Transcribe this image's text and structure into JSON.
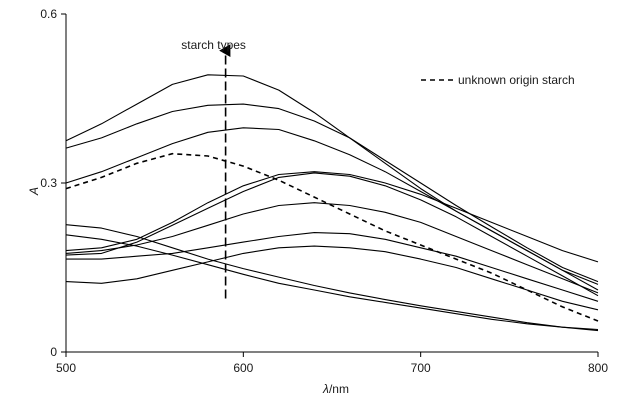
{
  "chart_data": {
    "type": "line",
    "xlabel_symbol": "λ",
    "xlabel_unit": "/nm",
    "ylabel": "A",
    "xlim": [
      500,
      800
    ],
    "ylim": [
      0,
      0.6
    ],
    "x_ticks": [
      "500",
      "600",
      "700",
      "800"
    ],
    "y_ticks": [
      "0",
      "0.3",
      "0.6"
    ],
    "grid": false,
    "annotation": "starch types",
    "legend": {
      "label": "unknown origin starch",
      "style": "dashed",
      "placement": "top-right"
    },
    "x": [
      500,
      520,
      540,
      560,
      580,
      600,
      620,
      640,
      660,
      680,
      700,
      720,
      740,
      760,
      780,
      800
    ],
    "series": [
      {
        "style": "solid",
        "values": [
          0.375,
          0.405,
          0.44,
          0.475,
          0.492,
          0.49,
          0.465,
          0.425,
          0.38,
          0.335,
          0.29,
          0.25,
          0.215,
          0.18,
          0.145,
          0.12
        ]
      },
      {
        "style": "solid",
        "values": [
          0.362,
          0.38,
          0.405,
          0.427,
          0.438,
          0.44,
          0.432,
          0.41,
          0.38,
          0.34,
          0.3,
          0.26,
          0.222,
          0.185,
          0.15,
          0.125
        ]
      },
      {
        "style": "solid",
        "values": [
          0.3,
          0.32,
          0.345,
          0.37,
          0.39,
          0.398,
          0.395,
          0.375,
          0.35,
          0.32,
          0.285,
          0.25,
          0.215,
          0.18,
          0.145,
          0.11
        ]
      },
      {
        "style": "solid",
        "values": [
          0.18,
          0.185,
          0.2,
          0.23,
          0.265,
          0.295,
          0.315,
          0.32,
          0.315,
          0.3,
          0.28,
          0.255,
          0.23,
          0.205,
          0.18,
          0.16
        ]
      },
      {
        "style": "solid",
        "values": [
          0.172,
          0.175,
          0.195,
          0.225,
          0.255,
          0.285,
          0.31,
          0.318,
          0.312,
          0.295,
          0.27,
          0.24,
          0.205,
          0.17,
          0.135,
          0.1
        ]
      },
      {
        "style": "solid",
        "values": [
          0.175,
          0.18,
          0.19,
          0.205,
          0.225,
          0.245,
          0.26,
          0.265,
          0.26,
          0.248,
          0.23,
          0.205,
          0.18,
          0.155,
          0.13,
          0.105
        ]
      },
      {
        "style": "solid",
        "values": [
          0.165,
          0.165,
          0.17,
          0.175,
          0.185,
          0.195,
          0.205,
          0.212,
          0.21,
          0.2,
          0.185,
          0.17,
          0.15,
          0.13,
          0.11,
          0.09
        ]
      },
      {
        "style": "solid",
        "values": [
          0.125,
          0.122,
          0.13,
          0.145,
          0.16,
          0.175,
          0.185,
          0.188,
          0.185,
          0.178,
          0.165,
          0.15,
          0.13,
          0.11,
          0.09,
          0.075
        ]
      },
      {
        "style": "solid",
        "values": [
          0.226,
          0.22,
          0.205,
          0.185,
          0.165,
          0.148,
          0.133,
          0.118,
          0.105,
          0.093,
          0.082,
          0.072,
          0.062,
          0.052,
          0.044,
          0.038
        ]
      },
      {
        "style": "solid",
        "values": [
          0.208,
          0.2,
          0.188,
          0.172,
          0.155,
          0.138,
          0.122,
          0.11,
          0.098,
          0.088,
          0.078,
          0.068,
          0.058,
          0.05,
          0.044,
          0.04
        ]
      },
      {
        "name": "unknown origin starch",
        "style": "dashed",
        "values": [
          0.29,
          0.31,
          0.335,
          0.352,
          0.348,
          0.33,
          0.305,
          0.275,
          0.245,
          0.215,
          0.19,
          0.165,
          0.14,
          0.11,
          0.08,
          0.055
        ]
      }
    ]
  }
}
